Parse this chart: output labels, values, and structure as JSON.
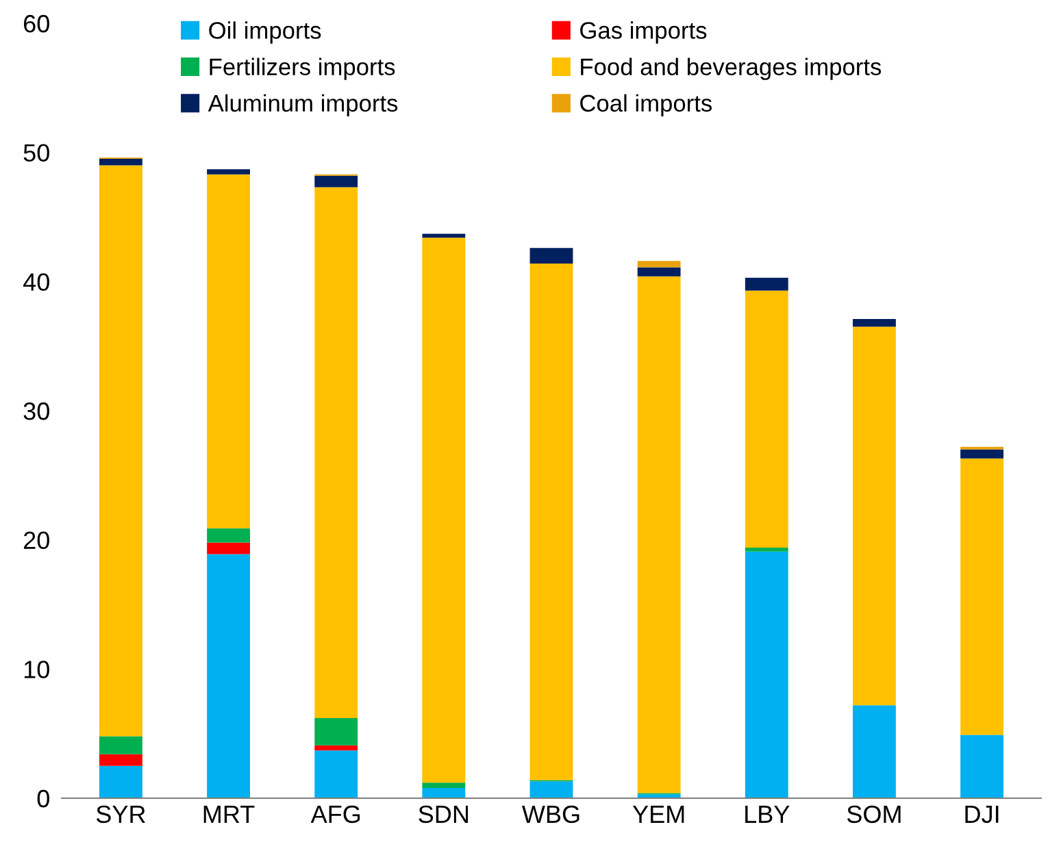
{
  "chart_data": {
    "type": "bar",
    "stacked": true,
    "categories": [
      "SYR",
      "MRT",
      "AFG",
      "SDN",
      "WBG",
      "YEM",
      "LBY",
      "SOM",
      "DJI"
    ],
    "series": [
      {
        "name": "Oil imports",
        "color": "#00b0f0",
        "values": [
          2.5,
          18.9,
          3.7,
          0.8,
          1.3,
          0.3,
          19.1,
          7.2,
          4.9
        ]
      },
      {
        "name": "Gas imports",
        "color": "#ff0000",
        "values": [
          0.9,
          0.9,
          0.4,
          0,
          0,
          0,
          0,
          0,
          0
        ]
      },
      {
        "name": "Fertilizers imports",
        "color": "#00b050",
        "values": [
          1.4,
          1.1,
          2.1,
          0.4,
          0.1,
          0.1,
          0.3,
          0,
          0
        ]
      },
      {
        "name": "Food and beverages imports",
        "color": "#ffc000",
        "values": [
          44.2,
          27.4,
          41.1,
          42.2,
          40.0,
          40.0,
          19.9,
          29.3,
          21.4
        ]
      },
      {
        "name": "Aluminum imports",
        "color": "#002060",
        "values": [
          0.5,
          0.4,
          0.9,
          0.3,
          1.2,
          0.7,
          1.0,
          0.6,
          0.7
        ]
      },
      {
        "name": "Coal imports",
        "color": "#eaa10a",
        "values": [
          0.1,
          0,
          0.1,
          0,
          0,
          0.5,
          0,
          0,
          0.2
        ]
      }
    ],
    "ylim": [
      0,
      60
    ],
    "yticks": [
      0,
      10,
      20,
      30,
      40,
      50,
      60
    ],
    "grid": false,
    "legend": "top"
  }
}
